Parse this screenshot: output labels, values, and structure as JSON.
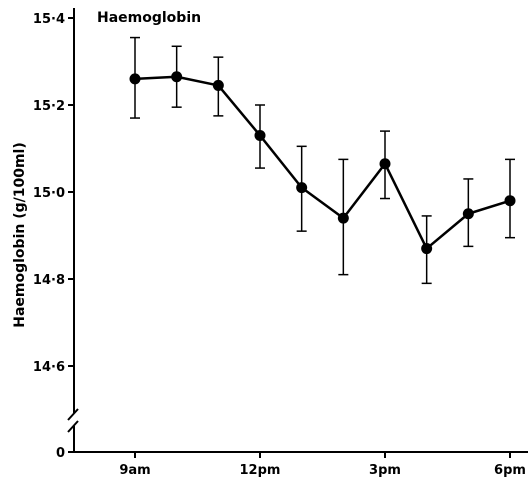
{
  "chart_data": {
    "type": "line",
    "title": "Haemoglobin",
    "xlabel": "",
    "ylabel": "Haemoglobin (g/100ml)",
    "x_unit": "hours from 9am",
    "xlim": [
      -1,
      9.5
    ],
    "ylim": [
      14.6,
      15.4
    ],
    "y_ticks": [
      {
        "value": 15.4,
        "label": "15·4"
      },
      {
        "value": 15.2,
        "label": "15·2"
      },
      {
        "value": 15.0,
        "label": "15·0"
      },
      {
        "value": 14.8,
        "label": "14·8"
      },
      {
        "value": 14.6,
        "label": "14·6"
      }
    ],
    "y_zero_label": "0",
    "axis_break": true,
    "x_ticks": [
      {
        "value": 0,
        "label": "9am"
      },
      {
        "value": 3,
        "label": "12pm"
      },
      {
        "value": 6,
        "label": "3pm"
      },
      {
        "value": 9,
        "label": "6pm"
      }
    ],
    "grid": false,
    "series": [
      {
        "x": [
          0,
          1,
          2,
          3,
          4,
          5,
          6,
          7,
          8,
          9
        ],
        "y": [
          15.26,
          15.265,
          15.245,
          15.13,
          15.01,
          14.94,
          15.065,
          14.87,
          14.95,
          14.98
        ],
        "err_upper": [
          15.355,
          15.335,
          15.31,
          15.2,
          15.105,
          15.075,
          15.14,
          14.945,
          15.03,
          15.075
        ],
        "err_lower": [
          15.17,
          15.195,
          15.175,
          15.055,
          14.91,
          14.81,
          14.985,
          14.79,
          14.875,
          14.895
        ]
      }
    ],
    "colors": {
      "line": "#000000",
      "marker": "#000000",
      "background": "#ffffff"
    }
  }
}
